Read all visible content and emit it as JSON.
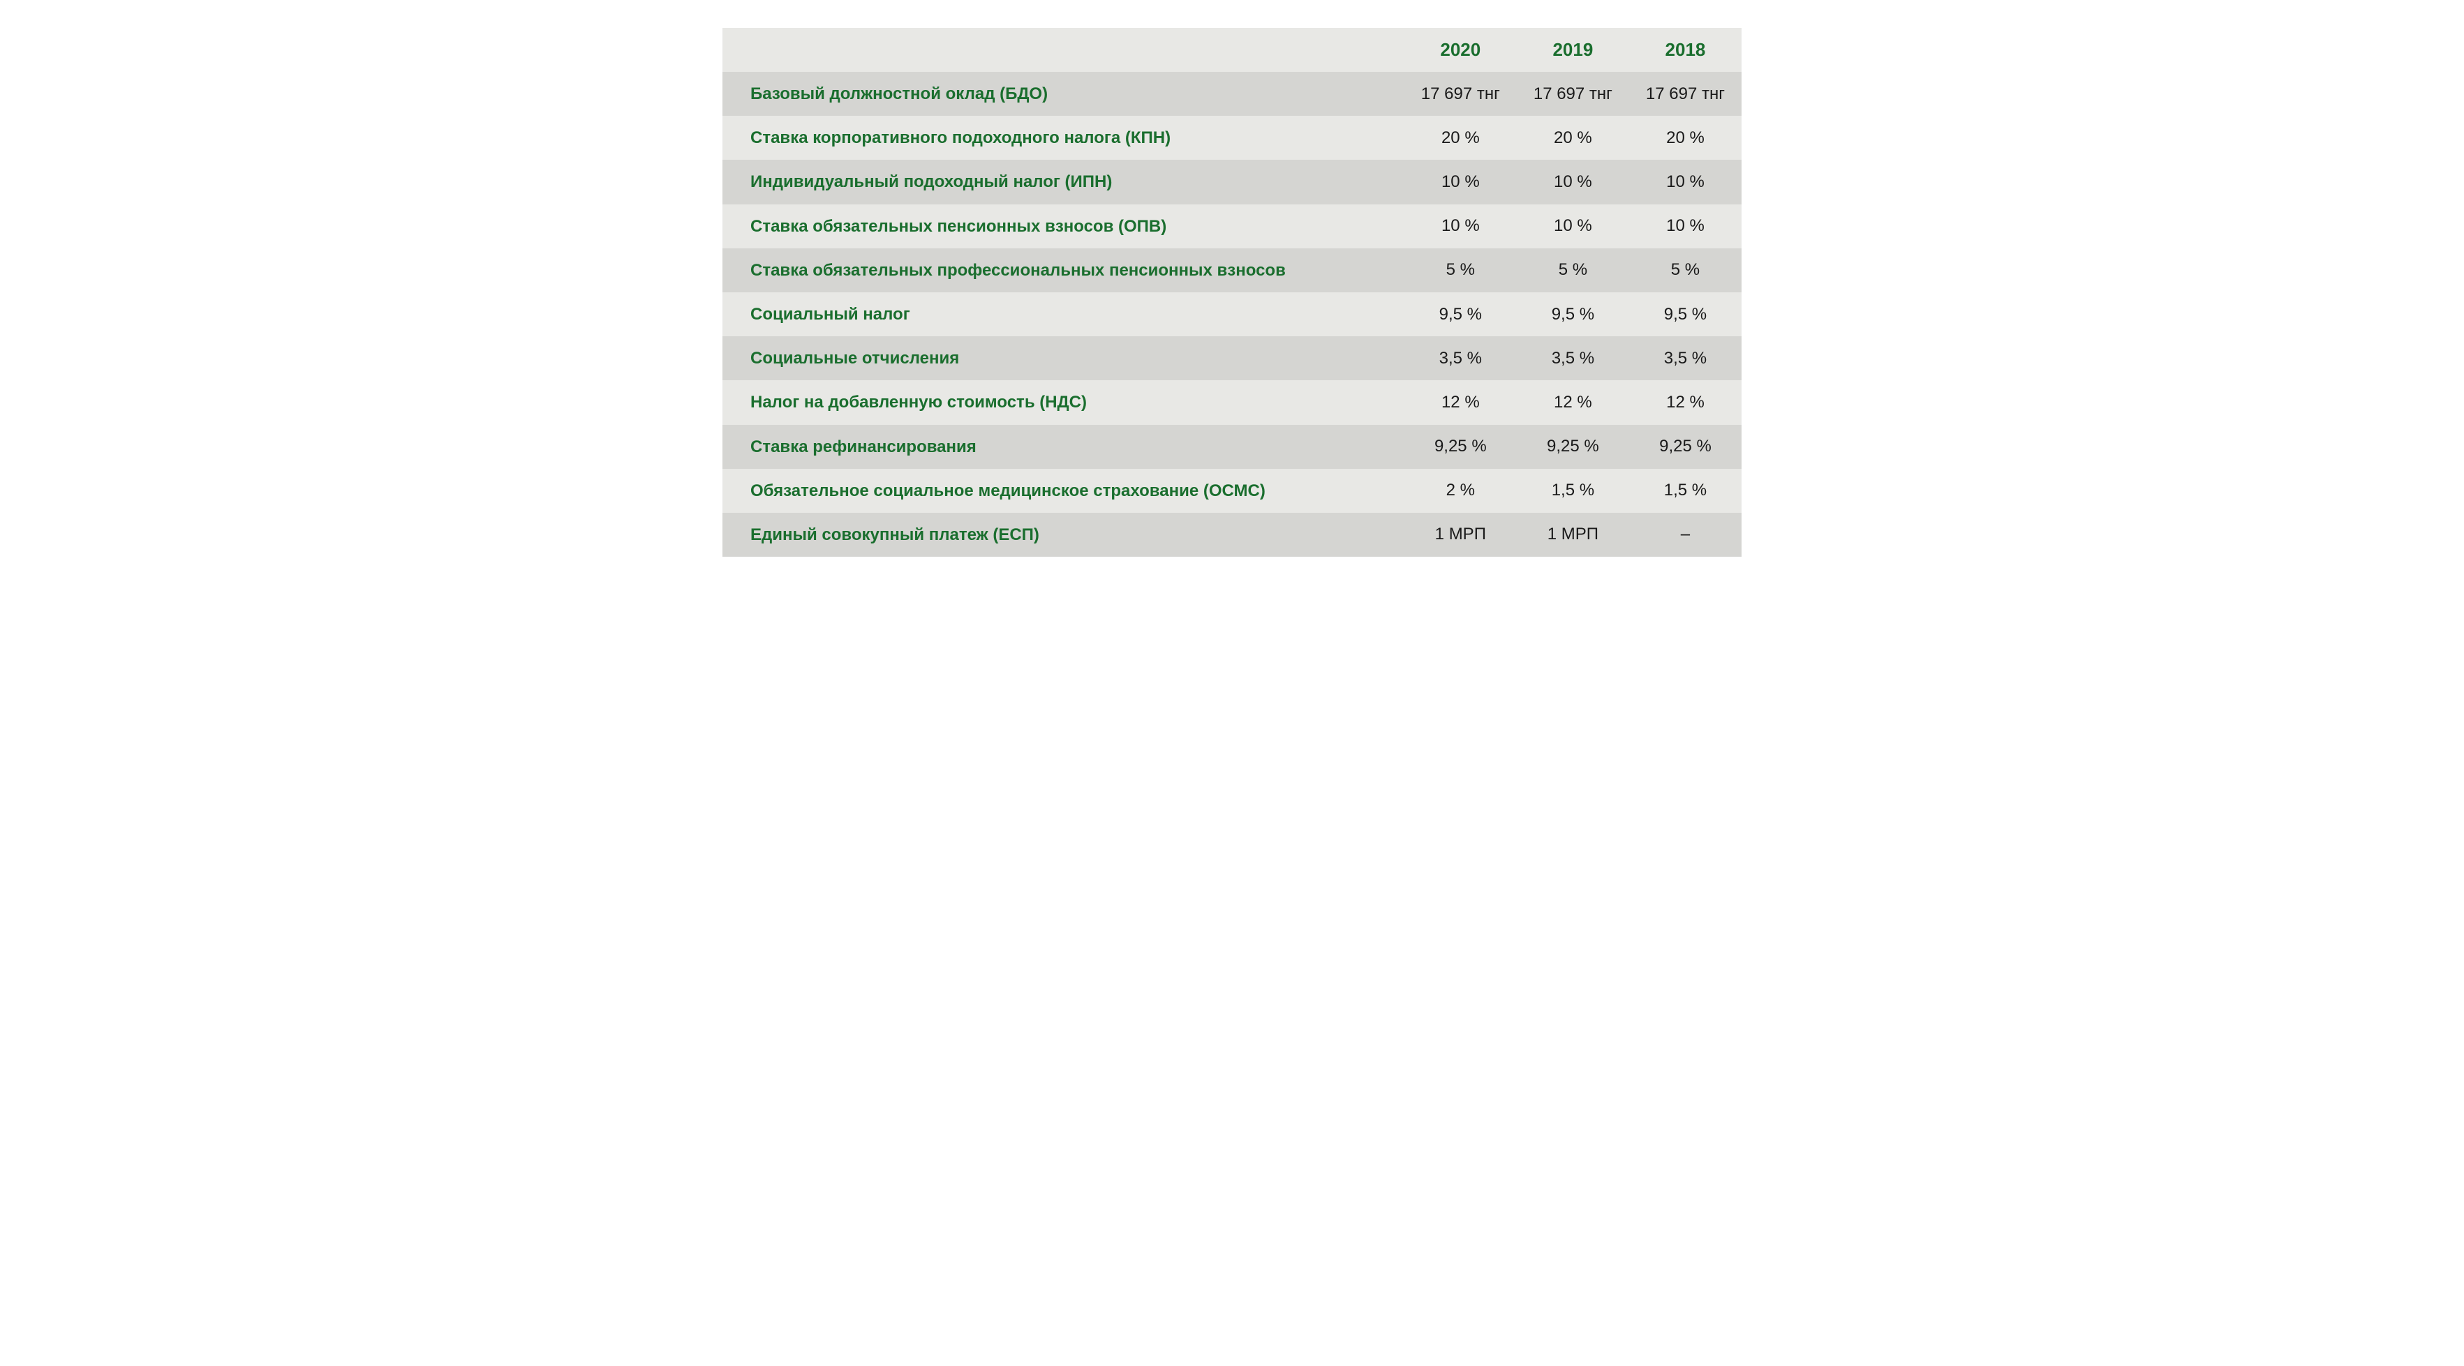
{
  "table": {
    "type": "table",
    "columns": [
      "",
      "2020",
      "2019",
      "2018"
    ],
    "header_color": "#1a6e2e",
    "header_fontsize": 26,
    "label_color": "#1a6e2e",
    "label_fontsize": 24,
    "value_color": "#1a1a1a",
    "value_fontsize": 24,
    "row_odd_bg": "#d5d5d2",
    "row_even_bg": "#e8e8e5",
    "header_bg": "#e8e8e5",
    "rows": [
      {
        "label": "Базовый должностной оклад (БДО)",
        "values": [
          "17 697 тнг",
          "17 697 тнг",
          "17 697 тнг"
        ]
      },
      {
        "label": "Ставка корпоративного подоходного налога (КПН)",
        "values": [
          "20 %",
          "20 %",
          "20 %"
        ]
      },
      {
        "label": "Индивидуальный подоходный налог (ИПН)",
        "values": [
          "10 %",
          "10 %",
          "10 %"
        ]
      },
      {
        "label": "Ставка обязательных пенсионных взносов (ОПВ)",
        "values": [
          "10 %",
          "10 %",
          "10 %"
        ]
      },
      {
        "label": "Ставка обязательных профессиональных пенсионных взносов",
        "values": [
          "5 %",
          "5 %",
          "5 %"
        ]
      },
      {
        "label": "Социальный налог",
        "values": [
          "9,5 %",
          "9,5 %",
          "9,5 %"
        ]
      },
      {
        "label": "Социальные отчисления",
        "values": [
          "3,5 %",
          "3,5 %",
          "3,5 %"
        ]
      },
      {
        "label": "Налог на добавленную стоимость (НДС)",
        "values": [
          "12 %",
          "12 %",
          "12 %"
        ]
      },
      {
        "label": "Ставка рефинансирования",
        "values": [
          "9,25 %",
          "9,25 %",
          "9,25 %"
        ]
      },
      {
        "label": "Обязательное социальное медицинское страхование (ОСМС)",
        "values": [
          "2 %",
          "1,5 %",
          "1,5 %"
        ]
      },
      {
        "label": "Единый совокупный платеж (ЕСП)",
        "values": [
          "1 МРП",
          "1 МРП",
          "–"
        ]
      }
    ]
  }
}
